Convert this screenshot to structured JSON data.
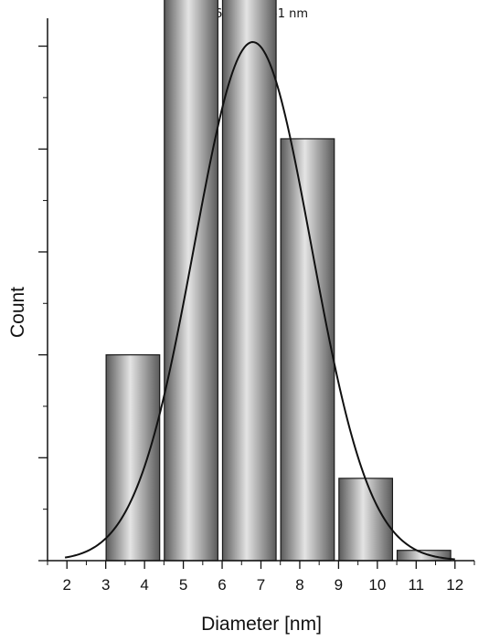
{
  "chart_data": {
    "type": "bar",
    "title": "6.79 ± 1.51 nm",
    "xlabel": "Diameter [nm]",
    "ylabel": "Count",
    "bin_centers": [
      3.7,
      5.2,
      6.7,
      8.2,
      9.7,
      11.2
    ],
    "bin_width": 1.5,
    "values": [
      2.0,
      5.7,
      6.2,
      4.1,
      0.8,
      0.1
    ],
    "xlim": [
      1.5,
      12.5
    ],
    "ylim": [
      0,
      5.2
    ],
    "xticks": [
      2,
      3,
      4,
      5,
      6,
      7,
      8,
      9,
      10,
      11,
      12
    ],
    "y_tick_labels_shown": false,
    "fit": {
      "type": "gaussian",
      "mean": 6.79,
      "sd": 1.51,
      "peak": 5.04
    },
    "grid": false,
    "legend": "none",
    "colors": {
      "bar_light": "#e4e4e4",
      "bar_dark": "#5a5a5a",
      "curve": "#111111",
      "axis": "#111111"
    }
  }
}
